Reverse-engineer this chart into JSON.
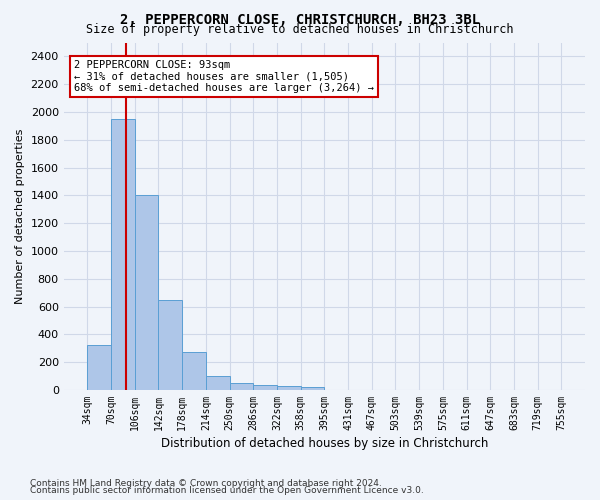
{
  "title1": "2, PEPPERCORN CLOSE, CHRISTCHURCH, BH23 3BL",
  "title2": "Size of property relative to detached houses in Christchurch",
  "xlabel": "Distribution of detached houses by size in Christchurch",
  "ylabel": "Number of detached properties",
  "bin_labels": [
    "34sqm",
    "70sqm",
    "106sqm",
    "142sqm",
    "178sqm",
    "214sqm",
    "250sqm",
    "286sqm",
    "322sqm",
    "358sqm",
    "395sqm",
    "431sqm",
    "467sqm",
    "503sqm",
    "539sqm",
    "575sqm",
    "611sqm",
    "647sqm",
    "683sqm",
    "719sqm",
    "755sqm"
  ],
  "bar_heights": [
    320,
    1950,
    1400,
    645,
    270,
    100,
    47,
    38,
    27,
    18,
    0,
    0,
    0,
    0,
    0,
    0,
    0,
    0,
    0,
    0
  ],
  "bar_color": "#aec6e8",
  "bar_edge_color": "#5a9fd4",
  "property_line_x": 1.63,
  "annotation_text": "2 PEPPERCORN CLOSE: 93sqm\n← 31% of detached houses are smaller (1,505)\n68% of semi-detached houses are larger (3,264) →",
  "annotation_box_color": "#ffffff",
  "annotation_box_edge_color": "#cc0000",
  "red_line_color": "#cc0000",
  "grid_color": "#d0d8e8",
  "ylim": [
    0,
    2500
  ],
  "yticks": [
    0,
    200,
    400,
    600,
    800,
    1000,
    1200,
    1400,
    1600,
    1800,
    2000,
    2200,
    2400
  ],
  "footnote1": "Contains HM Land Registry data © Crown copyright and database right 2024.",
  "footnote2": "Contains public sector information licensed under the Open Government Licence v3.0.",
  "bg_color": "#f0f4fa"
}
